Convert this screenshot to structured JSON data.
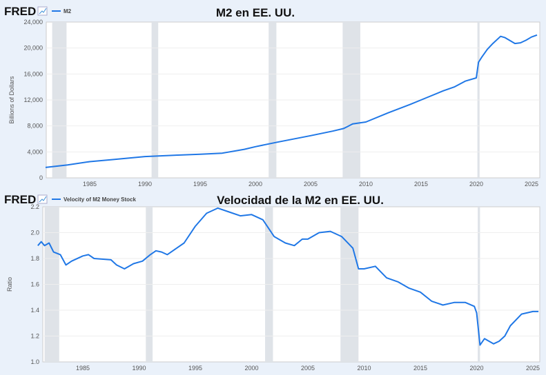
{
  "colors": {
    "line": "#1f77e6",
    "recession": "#dfe3e8",
    "panel": "#eaf1fa"
  },
  "logo": "FRED",
  "chart_data": [
    {
      "type": "line",
      "title": "M2 en EE. UU.",
      "legend": "M2",
      "ylabel": "Billions of Dollars",
      "xlabel": "",
      "ylim": [
        0,
        24000
      ],
      "xlim": [
        1981,
        2025.7
      ],
      "yticks": [
        "0",
        "4,000",
        "8,000",
        "12,000",
        "16,000",
        "20,000",
        "24,000"
      ],
      "ytick_values": [
        0,
        4000,
        8000,
        12000,
        16000,
        20000,
        24000
      ],
      "xticks": [
        "1985",
        "1990",
        "1995",
        "2000",
        "2005",
        "2010",
        "2015",
        "2020",
        "2025"
      ],
      "recessions": [
        [
          1981.6,
          1982.9
        ],
        [
          1990.6,
          1991.2
        ],
        [
          2001.2,
          2001.9
        ],
        [
          2007.9,
          2009.5
        ],
        [
          2020.1,
          2020.3
        ]
      ],
      "x": [
        1981,
        1983,
        1985,
        1987,
        1990,
        1993,
        1995,
        1997,
        1999,
        2000,
        2002,
        2005,
        2007,
        2008,
        2008.8,
        2010,
        2012,
        2014,
        2015,
        2017,
        2018,
        2019,
        2020.0,
        2020.2,
        2020.5,
        2021,
        2021.5,
        2022.2,
        2022.6,
        2023,
        2023.5,
        2024,
        2024.5,
        2025,
        2025.5
      ],
      "y": [
        1600,
        2000,
        2500,
        2800,
        3280,
        3500,
        3640,
        3800,
        4400,
        4800,
        5500,
        6500,
        7200,
        7600,
        8300,
        8600,
        10000,
        11300,
        12000,
        13400,
        14000,
        14900,
        15400,
        17800,
        18600,
        19800,
        20700,
        21800,
        21600,
        21200,
        20700,
        20800,
        21200,
        21700,
        22000
      ]
    },
    {
      "type": "line",
      "title": "Velocidad de la M2 en EE. UU.",
      "legend": "Velocity of M2 Money Stock",
      "ylabel": "Ratio",
      "xlabel": "",
      "ylim": [
        1.0,
        2.2
      ],
      "xlim": [
        1981,
        2025.6
      ],
      "yticks": [
        "1.0",
        "1.2",
        "1.4",
        "1.6",
        "1.8",
        "2.0",
        "2.2"
      ],
      "ytick_values": [
        1.0,
        1.2,
        1.4,
        1.6,
        1.8,
        2.0,
        2.2
      ],
      "xticks": [
        "1985",
        "1990",
        "1995",
        "2000",
        "2005",
        "2010",
        "2015",
        "2020",
        "2025"
      ],
      "recessions": [
        [
          1981.6,
          1982.9
        ],
        [
          1990.6,
          1991.2
        ],
        [
          2001.2,
          2001.9
        ],
        [
          2007.9,
          2009.5
        ],
        [
          2020.1,
          2020.3
        ]
      ],
      "x": [
        1981,
        1981.3,
        1981.6,
        1982,
        1982.4,
        1983,
        1983.5,
        1984,
        1985,
        1985.5,
        1986,
        1987.5,
        1988,
        1988.7,
        1989.5,
        1990.3,
        1991,
        1991.5,
        1992,
        1992.5,
        1993,
        1994,
        1995,
        1996,
        1997,
        1998,
        1999,
        2000,
        2001,
        2002,
        2003,
        2003.8,
        2004.5,
        2005,
        2006,
        2007,
        2008,
        2009,
        2009.5,
        2010,
        2011,
        2012,
        2013,
        2014,
        2015,
        2016,
        2017,
        2018,
        2019,
        2019.8,
        2020.0,
        2020.3,
        2020.7,
        2021.5,
        2022,
        2022.5,
        2023,
        2024,
        2025,
        2025.5
      ],
      "y": [
        1.9,
        1.93,
        1.9,
        1.92,
        1.85,
        1.83,
        1.75,
        1.78,
        1.82,
        1.83,
        1.8,
        1.79,
        1.75,
        1.72,
        1.76,
        1.78,
        1.83,
        1.86,
        1.85,
        1.83,
        1.86,
        1.92,
        2.05,
        2.15,
        2.19,
        2.16,
        2.13,
        2.14,
        2.1,
        1.97,
        1.92,
        1.9,
        1.95,
        1.95,
        2.0,
        2.01,
        1.97,
        1.88,
        1.72,
        1.72,
        1.74,
        1.65,
        1.62,
        1.57,
        1.54,
        1.47,
        1.44,
        1.46,
        1.46,
        1.43,
        1.38,
        1.13,
        1.18,
        1.14,
        1.16,
        1.2,
        1.28,
        1.37,
        1.39,
        1.39
      ]
    }
  ]
}
